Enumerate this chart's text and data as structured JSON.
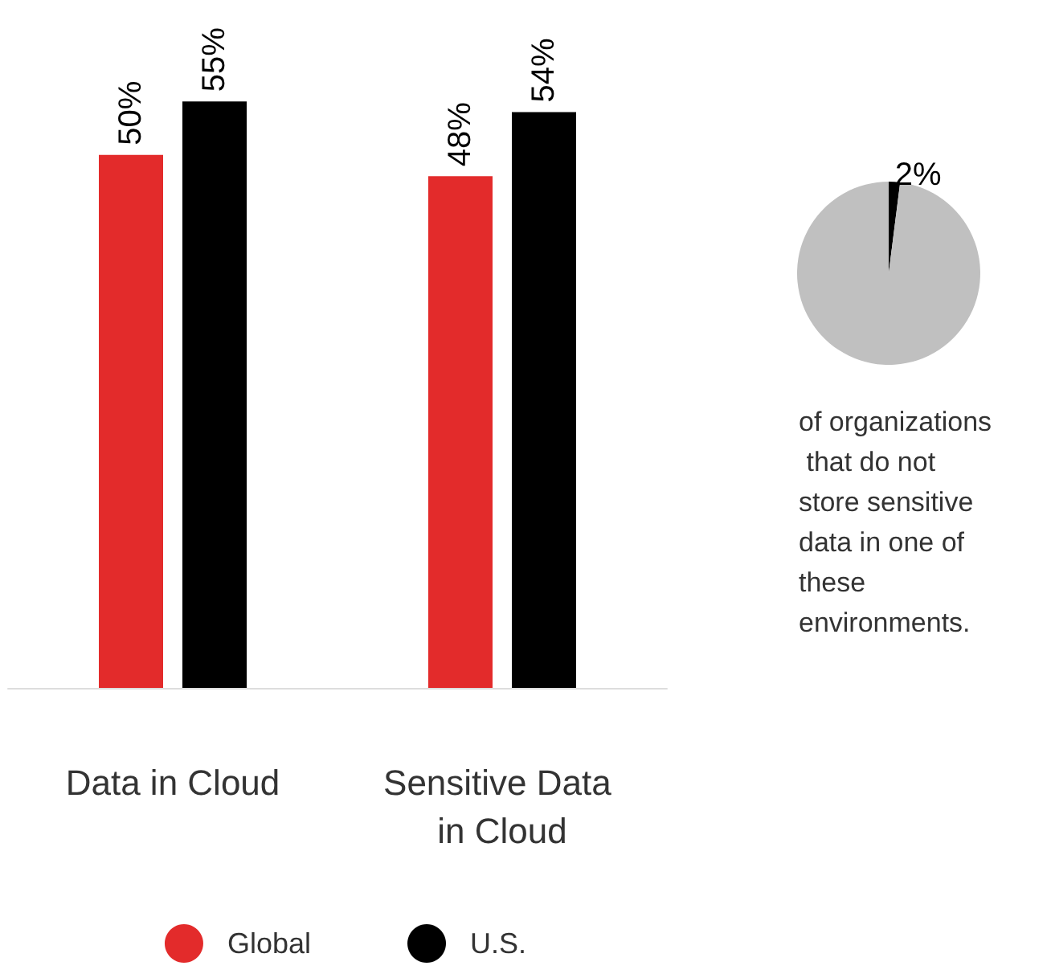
{
  "chart_data": [
    {
      "type": "bar",
      "categories": [
        "Data in Cloud",
        "Sensitive Data in Cloud"
      ],
      "series": [
        {
          "name": "Global",
          "color": "#e32b2b",
          "values": [
            50,
            48
          ],
          "value_labels": [
            "50%",
            "48%"
          ]
        },
        {
          "name": "U.S.",
          "color": "#000000",
          "values": [
            55,
            54
          ],
          "value_labels": [
            "55%",
            "54%"
          ]
        }
      ],
      "legend": "bottom",
      "grid": false
    },
    {
      "type": "pie",
      "categories": [
        null,
        null
      ],
      "values": [
        2,
        98
      ],
      "colors": [
        "#000000",
        "#c0c0c0"
      ],
      "value_labels": [
        "2%",
        null
      ],
      "annotations": [
        "of organizations that do not store sensitive data in one of these environments."
      ]
    }
  ]
}
